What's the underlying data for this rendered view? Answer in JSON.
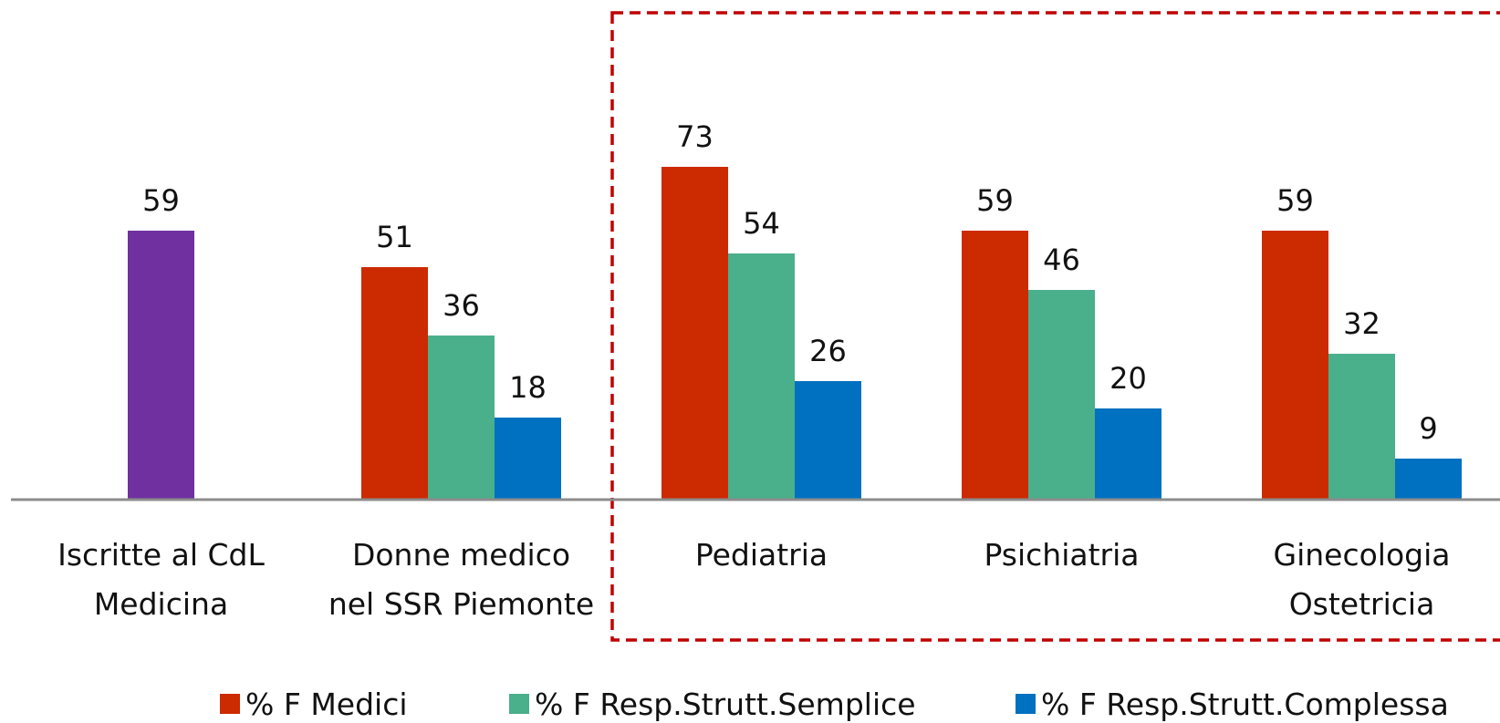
{
  "chart_data": {
    "type": "bar",
    "categories": [
      "Iscritte al CdL\nMedicina",
      "Donne medico\nnel SSR Piemonte",
      "Pediatria",
      "Psichiatria",
      "Ginecologia\nOstetricia"
    ],
    "series": [
      {
        "color": "#7030a0",
        "values": [
          59,
          null,
          null,
          null,
          null
        ]
      },
      {
        "name": "% F Medici",
        "color": "#cc2a00",
        "values": [
          null,
          51,
          73,
          59,
          59
        ]
      },
      {
        "name": "% F Resp.Strutt.Semplice",
        "color": "#4aaf8b",
        "values": [
          null,
          36,
          54,
          46,
          32
        ]
      },
      {
        "name": "% F Resp.Strutt.Complessa",
        "color": "#0070c0",
        "values": [
          null,
          18,
          26,
          20,
          9
        ]
      }
    ],
    "ylim": [
      0,
      100
    ]
  }
}
